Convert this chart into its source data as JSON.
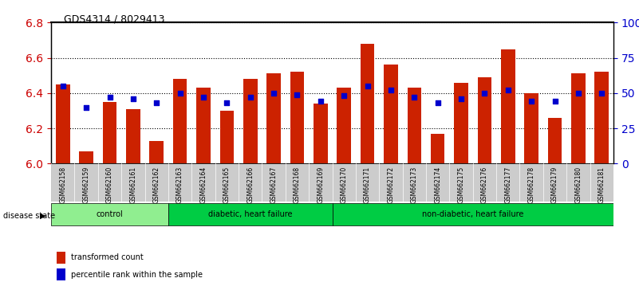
{
  "title": "GDS4314 / 8029413",
  "samples": [
    "GSM662158",
    "GSM662159",
    "GSM662160",
    "GSM662161",
    "GSM662162",
    "GSM662163",
    "GSM662164",
    "GSM662165",
    "GSM662166",
    "GSM662167",
    "GSM662168",
    "GSM662169",
    "GSM662170",
    "GSM662171",
    "GSM662172",
    "GSM662173",
    "GSM662174",
    "GSM662175",
    "GSM662176",
    "GSM662177",
    "GSM662178",
    "GSM662179",
    "GSM662180",
    "GSM662181"
  ],
  "red_values": [
    6.45,
    6.07,
    6.35,
    6.31,
    6.13,
    6.48,
    6.43,
    6.3,
    6.48,
    6.51,
    6.52,
    6.34,
    6.43,
    6.68,
    6.56,
    6.43,
    6.17,
    6.46,
    6.49,
    6.65,
    6.4,
    6.26,
    6.51,
    6.52
  ],
  "blue_values": [
    55,
    40,
    47,
    46,
    43,
    50,
    47,
    43,
    47,
    50,
    49,
    44,
    48,
    55,
    52,
    47,
    43,
    46,
    50,
    52,
    44,
    44,
    50,
    50
  ],
  "groups": [
    {
      "label": "control",
      "start": 0,
      "end": 5,
      "color": "#90EE90"
    },
    {
      "label": "diabetic, heart failure",
      "start": 5,
      "end": 12,
      "color": "#00CC44"
    },
    {
      "label": "non-diabetic, heart failure",
      "start": 12,
      "end": 24,
      "color": "#00CC44"
    }
  ],
  "ylim_left": [
    6.0,
    6.8
  ],
  "ylim_right": [
    0,
    100
  ],
  "ylabel_left_color": "#CC0000",
  "ylabel_right_color": "#0000CC",
  "bar_color": "#CC2200",
  "dot_color": "#0000CC",
  "grid_color": "#000000",
  "bg_color": "#FFFFFF",
  "tick_area_bg": "#CCCCCC"
}
